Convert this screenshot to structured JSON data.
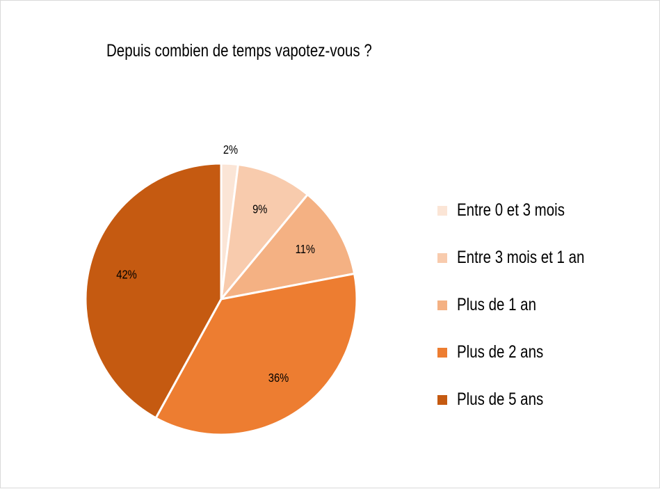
{
  "chart_data": {
    "type": "pie",
    "title": "Depuis combien de temps vapotez-vous ?",
    "categories": [
      "Entre 0 et 3 mois",
      "Entre 3 mois et 1 an",
      "Plus de 1 an",
      "Plus de 2 ans",
      "Plus de 5 ans"
    ],
    "values": [
      2,
      9,
      11,
      36,
      42
    ],
    "data_labels": [
      "2%",
      "9%",
      "11%",
      "36%",
      "42%"
    ],
    "colors": [
      "#FBE5D6",
      "#F8CBAD",
      "#F4B183",
      "#ED7D31",
      "#C55A11"
    ],
    "legend_position": "right"
  }
}
